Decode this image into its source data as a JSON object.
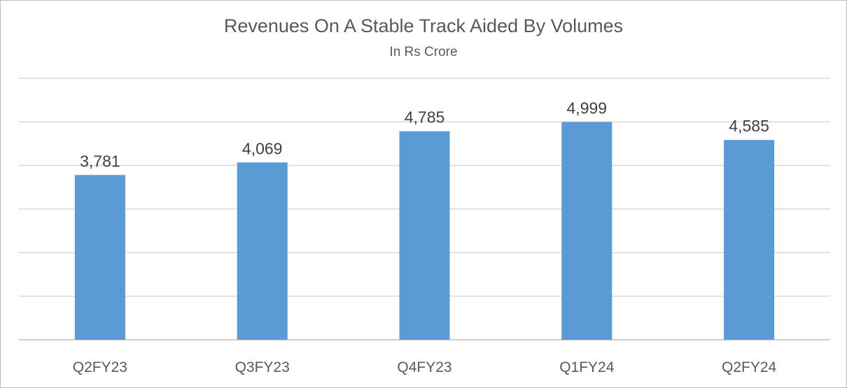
{
  "chart_data": {
    "type": "bar",
    "title": "Revenues On A Stable Track Aided By Volumes",
    "subtitle": "In Rs Crore",
    "categories": [
      "Q2FY23",
      "Q3FY23",
      "Q4FY23",
      "Q1FY24",
      "Q2FY24"
    ],
    "values": [
      3781,
      4069,
      4785,
      4999,
      4585
    ],
    "data_labels": [
      "3,781",
      "4,069",
      "4,785",
      "4,999",
      "4,585"
    ],
    "ylim": [
      0,
      6000
    ],
    "gridlines": [
      1000,
      2000,
      3000,
      4000,
      5000,
      6000
    ],
    "grid": true,
    "legend": "none",
    "bar_color": "#5b9bd5"
  }
}
